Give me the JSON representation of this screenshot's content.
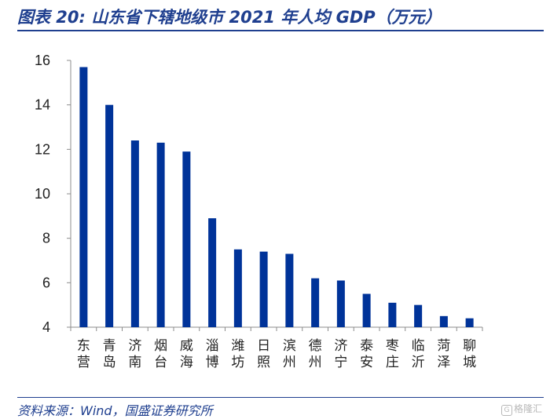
{
  "header": {
    "title": "图表 20:  山东省下辖地级市 2021 年人均 GDP（万元）"
  },
  "footer": {
    "source": "资料来源：Wind，国盛证券研究所",
    "watermark_text": "格隆汇"
  },
  "colors": {
    "bar": "#003399",
    "brand": "#1f3f8f"
  },
  "chart_data": {
    "type": "bar",
    "categories": [
      "东营",
      "青岛",
      "济南",
      "烟台",
      "威海",
      "淄博",
      "潍坊",
      "日照",
      "滨州",
      "德州",
      "济宁",
      "泰安",
      "枣庄",
      "临沂",
      "菏泽",
      "聊城"
    ],
    "values": [
      15.7,
      14.0,
      12.4,
      12.3,
      11.9,
      8.9,
      7.5,
      7.4,
      7.3,
      6.2,
      6.1,
      5.5,
      5.1,
      5.0,
      4.5,
      4.4
    ],
    "ylim": [
      4,
      16
    ],
    "yticks": [
      4,
      6,
      8,
      10,
      12,
      14,
      16
    ],
    "grid": false,
    "legend": "none",
    "title": "",
    "xlabel": "",
    "ylabel": ""
  }
}
